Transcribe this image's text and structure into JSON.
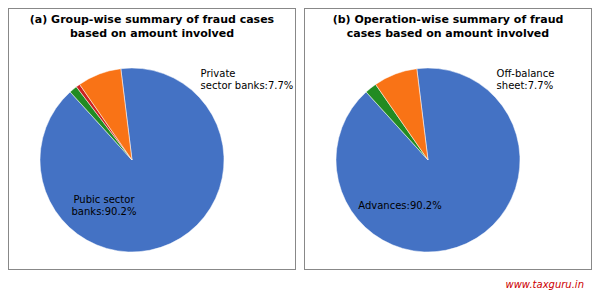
{
  "chart_data": [
    {
      "type": "pie",
      "title": "(a) Group-wise summary of fraud cases\nbased on amount involved",
      "values": [
        90.2,
        1.4,
        0.7,
        7.7
      ],
      "colors": [
        "#4472C4",
        "#228B22",
        "#CC2222",
        "#F97316"
      ],
      "annotations": [
        {
          "text": "Pubic sector\nbanks:90.2%"
        },
        {
          "text": "Private\nsector banks:7.7%"
        }
      ]
    },
    {
      "type": "pie",
      "title": "(b) Operation-wise summary of fraud\ncases based on amount involved",
      "values": [
        90.2,
        2.1,
        7.7
      ],
      "colors": [
        "#4472C4",
        "#228B22",
        "#F97316"
      ],
      "annotations": [
        {
          "text": "Advances:90.2%"
        },
        {
          "text": "Off-balance\nsheet:7.7%"
        },
        {
          "text": "www.taxguru.in",
          "color": "#CC0000"
        }
      ]
    }
  ]
}
